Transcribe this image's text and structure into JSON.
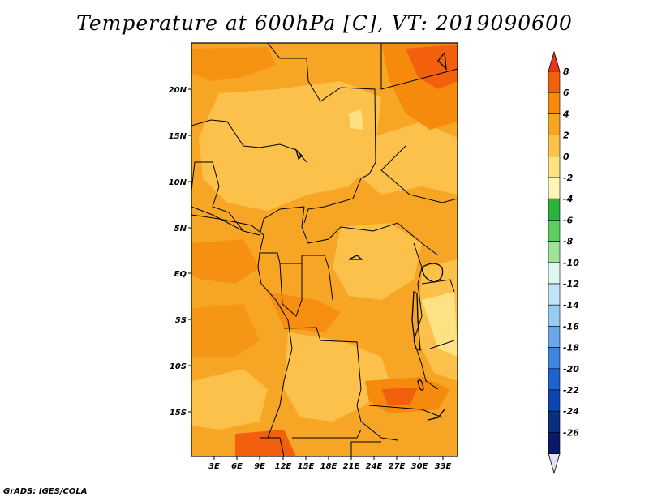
{
  "title": "Temperature at 600hPa [C], VT: 2019090600",
  "credit": "GrADS: IGES/COLA",
  "map": {
    "lat_labels": [
      "20N",
      "15N",
      "10N",
      "5N",
      "EQ",
      "5S",
      "10S",
      "15S"
    ],
    "lon_labels": [
      "3E",
      "6E",
      "9E",
      "12E",
      "15E",
      "18E",
      "21E",
      "24E",
      "27E",
      "30E",
      "33E"
    ]
  },
  "colorbar": {
    "labels": [
      "8",
      "6",
      "4",
      "2",
      "0",
      "-2",
      "-4",
      "-6",
      "-8",
      "-10",
      "-12",
      "-14",
      "-16",
      "-18",
      "-20",
      "-22",
      "-24",
      "-26"
    ],
    "colors": [
      "#e8341c",
      "#f2600e",
      "#f58a0c",
      "#f7a524",
      "#fbc14a",
      "#fde283",
      "#fff4b8",
      "#2ab43c",
      "#5fcc5f",
      "#9fe29a",
      "#e0f6f0",
      "#bfe3f7",
      "#98cbf1",
      "#6ba7e8",
      "#3e85df",
      "#1d62cd",
      "#0d46b2",
      "#08307f",
      "#0a1a6a",
      "#e0e0f8"
    ]
  },
  "chart_data": {
    "type": "heatmap",
    "title": "Temperature at 600hPa [C], VT: 2019090600",
    "colorbar_levels": [
      8,
      6,
      4,
      2,
      0,
      -2,
      -4,
      -6,
      -8,
      -10,
      -12,
      -14,
      -16,
      -18,
      -20,
      -22,
      -24,
      -26
    ],
    "lat_ticks": [
      "20N",
      "15N",
      "10N",
      "5N",
      "EQ",
      "5S",
      "10S",
      "15S"
    ],
    "lon_ticks": [
      "3E",
      "6E",
      "9E",
      "12E",
      "15E",
      "18E",
      "21E",
      "24E",
      "27E",
      "30E",
      "33E"
    ]
  }
}
